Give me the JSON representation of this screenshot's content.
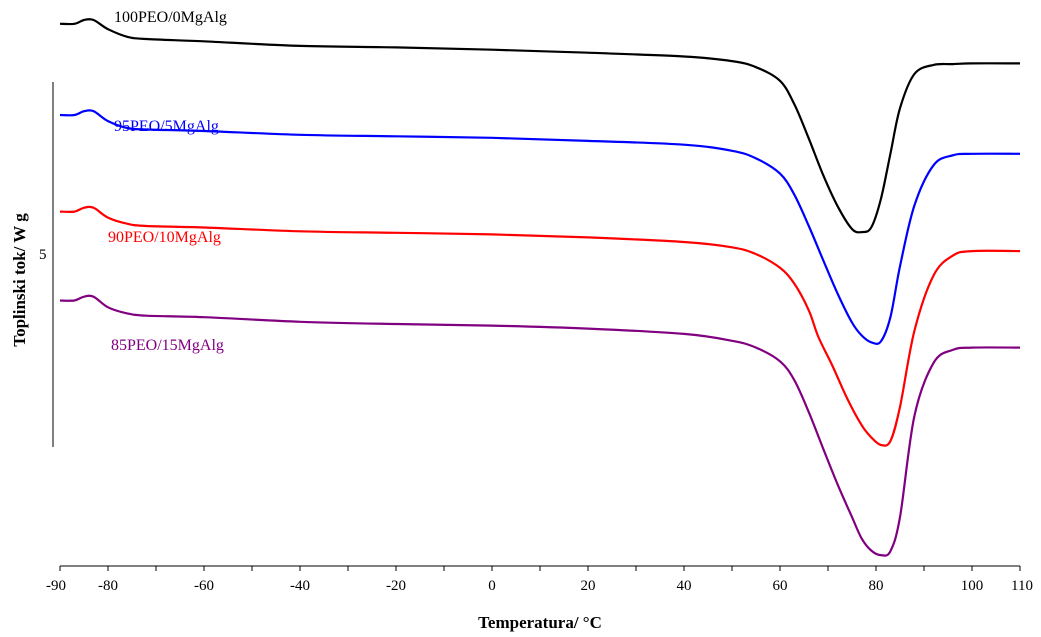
{
  "chart_data": {
    "type": "line",
    "xlabel": "Temperatura/ °C",
    "ylabel": "Toplinski tok/ W g",
    "xlim": [
      -90,
      110
    ],
    "x_ticks": [
      -90,
      -80,
      -60,
      -40,
      -20,
      0,
      20,
      40,
      60,
      80,
      100,
      110
    ],
    "x_tick_labels": [
      "-90",
      "-80",
      "-60",
      "-40",
      "-20",
      "0",
      "20",
      "40",
      "60",
      "80",
      "100",
      "110"
    ],
    "y_scale_bar_label": "5",
    "grid": false,
    "legend": "inline labels",
    "series": [
      {
        "name": "100PEO/0MgAlg",
        "color": "#000000",
        "x": [
          -90,
          -87,
          -85,
          -83,
          -80,
          -76,
          -72,
          -60,
          -40,
          -20,
          0,
          20,
          40,
          50,
          55,
          60,
          63,
          66,
          69,
          72,
          75,
          77,
          79,
          81,
          83,
          85,
          88,
          92,
          96,
          100,
          110
        ],
        "y": [
          -0.9,
          -0.9,
          -0.4,
          -0.4,
          -1.6,
          -2.6,
          -2.9,
          -3.2,
          -3.8,
          -4.0,
          -4.3,
          -4.7,
          -5.2,
          -5.8,
          -6.6,
          -8.4,
          -11.5,
          -16.0,
          -20.8,
          -24.9,
          -27.9,
          -28.3,
          -27.7,
          -24.0,
          -18.0,
          -12.0,
          -7.5,
          -6.3,
          -6.2,
          -6.1,
          -6.1
        ]
      },
      {
        "name": "95PEO/5MgAlg",
        "color": "#0000ff",
        "x": [
          -90,
          -87,
          -85,
          -83,
          -80,
          -76,
          -72,
          -60,
          -40,
          -20,
          0,
          20,
          40,
          50,
          55,
          60,
          63,
          66,
          69,
          72,
          75,
          77,
          79,
          81,
          83,
          85,
          88,
          92,
          96,
          100,
          110
        ],
        "y": [
          -12.9,
          -12.9,
          -12.4,
          -12.4,
          -13.7,
          -14.6,
          -14.8,
          -15.0,
          -15.5,
          -15.7,
          -15.9,
          -16.3,
          -16.8,
          -17.6,
          -18.6,
          -20.6,
          -23.4,
          -27.5,
          -32.0,
          -36.4,
          -40.2,
          -41.9,
          -42.8,
          -42.7,
          -39.5,
          -32.8,
          -24.8,
          -19.5,
          -18.2,
          -18.0,
          -18.0
        ]
      },
      {
        "name": "90PEO/10MgAlg",
        "color": "#ff0000",
        "x": [
          -90,
          -87,
          -85,
          -83,
          -80,
          -76,
          -72,
          -60,
          -40,
          -20,
          0,
          20,
          40,
          50,
          55,
          60,
          63,
          66,
          68,
          71,
          74,
          77,
          79,
          81,
          83,
          85,
          88,
          92,
          96,
          100,
          110
        ],
        "y": [
          -25.6,
          -25.6,
          -25.1,
          -25.1,
          -26.4,
          -27.2,
          -27.5,
          -27.7,
          -28.2,
          -28.4,
          -28.6,
          -29.0,
          -29.6,
          -30.3,
          -31.2,
          -33.0,
          -35.1,
          -38.6,
          -42.1,
          -46.0,
          -50.2,
          -53.7,
          -55.3,
          -56.3,
          -55.8,
          -51.3,
          -41.3,
          -34.0,
          -31.4,
          -30.8,
          -30.8
        ]
      },
      {
        "name": "85PEO/15MgAlg",
        "color": "#800080",
        "x": [
          -90,
          -87,
          -85,
          -83,
          -80,
          -76,
          -72,
          -60,
          -40,
          -20,
          0,
          20,
          40,
          50,
          55,
          60,
          63,
          66,
          69,
          72,
          75,
          77,
          79,
          81,
          83,
          85,
          88,
          92,
          96,
          100,
          110
        ],
        "y": [
          -37.3,
          -37.3,
          -36.8,
          -36.8,
          -38.2,
          -39.0,
          -39.3,
          -39.5,
          -40.1,
          -40.4,
          -40.6,
          -41.0,
          -41.7,
          -42.6,
          -43.5,
          -45.3,
          -47.8,
          -52.0,
          -56.8,
          -61.5,
          -65.8,
          -68.6,
          -70.2,
          -70.8,
          -70.3,
          -65.8,
          -52.5,
          -45.5,
          -43.8,
          -43.5,
          -43.5
        ]
      }
    ]
  }
}
